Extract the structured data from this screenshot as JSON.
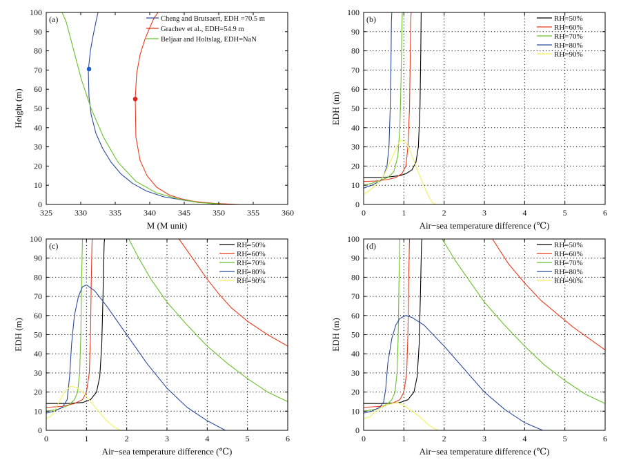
{
  "colors": {
    "black": "#000000",
    "red": "#e8391b",
    "green": "#6abf2a",
    "blue": "#2b4a9b",
    "yellow": "#f5f05a",
    "dot_blue": "#1f5fc9",
    "dot_red": "#e3231b"
  },
  "chart_data": [
    {
      "type": "line",
      "panel_label": "(a)",
      "xlabel": "M (M unit)",
      "ylabel": "Height (m)",
      "xlim": [
        325,
        360
      ],
      "ylim": [
        0,
        100
      ],
      "xticks": [
        325,
        330,
        335,
        340,
        345,
        350,
        355,
        360
      ],
      "yticks": [
        0,
        10,
        20,
        30,
        40,
        50,
        60,
        70,
        80,
        90,
        100
      ],
      "grid": false,
      "legend_position": "top-right",
      "series": [
        {
          "name": "Cheng and Brutsaert, EDH =70.5 m",
          "color": "blue",
          "x": [
            350.0,
            345.3,
            342.0,
            339.5,
            337.5,
            335.8,
            334.4,
            333.2,
            332.2,
            331.5,
            331.2,
            331.1,
            331.4,
            331.8,
            332.2,
            332.5
          ],
          "y": [
            0,
            2,
            4,
            7,
            11,
            16,
            22,
            29,
            37,
            47,
            56,
            70,
            80,
            88,
            95,
            100
          ]
        },
        {
          "name": "Grachev et al., EDH=54.9 m",
          "color": "red",
          "x": [
            353.0,
            349.5,
            346.5,
            344.5,
            342.8,
            341.0,
            339.6,
            338.6,
            338.0,
            337.9,
            338.1,
            338.6,
            339.3,
            340.0,
            340.6,
            341.2
          ],
          "y": [
            0,
            0.5,
            1.5,
            3,
            5,
            9,
            15,
            23,
            35,
            55,
            68,
            78,
            86,
            92,
            97,
            100
          ]
        },
        {
          "name": "Beljaar and Holtslag, EDH=NaN",
          "color": "green",
          "x": [
            351.0,
            347.0,
            344.0,
            341.0,
            338.0,
            335.4,
            333.3,
            331.5,
            330.1,
            329.0,
            327.9,
            327.3
          ],
          "y": [
            0,
            1,
            3,
            6,
            12,
            22,
            35,
            50,
            65,
            80,
            95,
            100
          ]
        }
      ],
      "points": [
        {
          "x": 331.2,
          "y": 70.5,
          "color": "dot_blue"
        },
        {
          "x": 337.9,
          "y": 54.9,
          "color": "dot_red"
        }
      ]
    },
    {
      "type": "line",
      "panel_label": "(b)",
      "xlabel": "Air−sea temperature difference (℃)",
      "ylabel": "EDH (m)",
      "xlim": [
        0,
        6
      ],
      "ylim": [
        0,
        100
      ],
      "xticks": [
        0,
        1,
        2,
        3,
        4,
        5,
        6
      ],
      "yticks": [
        0,
        10,
        20,
        30,
        40,
        50,
        60,
        70,
        80,
        90,
        100
      ],
      "grid": true,
      "legend_position": "top-right",
      "series": [
        {
          "name": "RH=50%",
          "color": "black",
          "x": [
            0,
            0.3,
            0.6,
            0.9,
            1.05,
            1.2,
            1.3,
            1.36,
            1.4,
            1.42,
            1.43,
            1.44,
            6
          ],
          "y": [
            14,
            14,
            14.3,
            15,
            16,
            18,
            22,
            30,
            50,
            80,
            100,
            100,
            100
          ]
        },
        {
          "name": "RH=60%",
          "color": "red",
          "x": [
            0,
            0.3,
            0.6,
            0.8,
            0.95,
            1.05,
            1.1,
            1.14,
            1.16,
            1.17,
            1.18,
            6
          ],
          "y": [
            12,
            12.2,
            13,
            14,
            16,
            20,
            30,
            50,
            80,
            95,
            100,
            100
          ]
        },
        {
          "name": "RH=70%",
          "color": "green",
          "x": [
            0,
            0.2,
            0.4,
            0.6,
            0.75,
            0.85,
            0.9,
            0.93,
            0.95,
            0.96,
            6
          ],
          "y": [
            10,
            11,
            12.5,
            14,
            17,
            25,
            40,
            65,
            90,
            100,
            100
          ]
        },
        {
          "name": "RH=80%",
          "color": "blue",
          "x": [
            0,
            0.2,
            0.4,
            0.5,
            0.58,
            0.63,
            0.66,
            0.68,
            0.69,
            0.7
          ],
          "y": [
            8.5,
            10,
            12,
            15,
            20,
            30,
            50,
            75,
            95,
            100
          ]
        },
        {
          "name": "RH=90%",
          "color": "yellow",
          "x": [
            0,
            0.1,
            0.3,
            0.5,
            0.7,
            0.85,
            0.9,
            0.95,
            1.05,
            1.15,
            1.3,
            1.45,
            1.6,
            1.7,
            1.8,
            6
          ],
          "y": [
            5.5,
            6.5,
            10,
            15,
            24,
            31,
            33,
            33.5,
            32,
            28,
            20,
            12,
            5,
            1,
            0,
            0
          ]
        }
      ]
    },
    {
      "type": "line",
      "panel_label": "(c)",
      "xlabel": "Air−sea temperature difference (℃)",
      "ylabel": "EDH (m)",
      "xlim": [
        0,
        6
      ],
      "ylim": [
        0,
        100
      ],
      "xticks": [
        0,
        1,
        2,
        3,
        4,
        5,
        6
      ],
      "yticks": [
        0,
        10,
        20,
        30,
        40,
        50,
        60,
        70,
        80,
        90,
        100
      ],
      "grid": true,
      "legend_position": "top-right",
      "series": [
        {
          "name": "RH=50%",
          "color": "black",
          "x": [
            0,
            0.5,
            0.9,
            1.1,
            1.25,
            1.33,
            1.38,
            1.41,
            1.43,
            1.44,
            1.45
          ],
          "y": [
            14,
            14,
            14.5,
            16,
            20,
            28,
            45,
            70,
            90,
            98,
            100
          ]
        },
        {
          "name": "RH=60%",
          "color": "red",
          "x": [
            0,
            0.4,
            0.7,
            0.9,
            1.0,
            1.07,
            1.1,
            1.12,
            1.14,
            3.3,
            3.7,
            4.0,
            4.3,
            4.6,
            5.0,
            5.5,
            6.0
          ],
          "y": [
            12,
            12.5,
            14,
            16,
            20,
            30,
            50,
            80,
            100,
            100,
            88,
            79,
            71,
            64,
            57,
            50,
            44
          ]
        },
        {
          "name": "RH=70%",
          "color": "green",
          "x": [
            0,
            0.3,
            0.55,
            0.7,
            0.78,
            0.83,
            0.86,
            0.88,
            0.9,
            2.05,
            2.3,
            2.6,
            3.0,
            3.5,
            4.0,
            4.5,
            5.0,
            5.5,
            6.0
          ],
          "y": [
            10,
            11,
            13,
            16,
            20,
            30,
            50,
            80,
            100,
            100,
            90,
            79,
            67,
            55,
            44,
            35,
            27,
            20,
            15
          ]
        },
        {
          "name": "RH=80%",
          "color": "blue",
          "x": [
            0,
            0.2,
            0.4,
            0.52,
            0.58,
            0.63,
            0.7,
            0.8,
            0.9,
            1.0,
            1.2,
            1.5,
            2.0,
            2.5,
            3.0,
            3.5,
            4.0,
            4.45
          ],
          "y": [
            9,
            10,
            12,
            16,
            28,
            45,
            60,
            70,
            75,
            76,
            73,
            65,
            50,
            35,
            22,
            12,
            5,
            0
          ]
        },
        {
          "name": "RH=90%",
          "color": "yellow",
          "x": [
            0,
            0.15,
            0.3,
            0.45,
            0.6,
            0.75,
            0.9,
            1.1,
            1.3,
            1.5,
            1.7,
            1.85,
            6
          ],
          "y": [
            6,
            8,
            14,
            20,
            23,
            22.5,
            20,
            15,
            10,
            5,
            1.5,
            0,
            0
          ]
        }
      ]
    },
    {
      "type": "line",
      "panel_label": "(d)",
      "xlabel": "Air−sea temperature difference (℃)",
      "ylabel": "EDH (m)",
      "xlim": [
        0,
        6
      ],
      "ylim": [
        0,
        100
      ],
      "xticks": [
        0,
        1,
        2,
        3,
        4,
        5,
        6
      ],
      "yticks": [
        0,
        10,
        20,
        30,
        40,
        50,
        60,
        70,
        80,
        90,
        100
      ],
      "grid": true,
      "legend_position": "top-right",
      "series": [
        {
          "name": "RH=50%",
          "color": "black",
          "x": [
            0,
            0.5,
            0.9,
            1.1,
            1.25,
            1.33,
            1.38,
            1.41,
            1.43,
            1.44,
            1.45
          ],
          "y": [
            14,
            14,
            14.5,
            16,
            20,
            28,
            45,
            70,
            90,
            98,
            100
          ]
        },
        {
          "name": "RH=60%",
          "color": "red",
          "x": [
            0,
            0.4,
            0.7,
            0.9,
            1.0,
            1.07,
            1.1,
            1.12,
            1.14,
            3.2,
            3.6,
            4.0,
            4.4,
            4.8,
            5.2,
            5.6,
            6.0
          ],
          "y": [
            12,
            12.5,
            14,
            16,
            20,
            30,
            50,
            80,
            100,
            100,
            87,
            77,
            68,
            61,
            54,
            48,
            42
          ]
        },
        {
          "name": "RH=70%",
          "color": "green",
          "x": [
            0,
            0.3,
            0.55,
            0.7,
            0.78,
            0.83,
            0.86,
            0.88,
            0.9,
            1.95,
            2.3,
            2.6,
            3.0,
            3.5,
            4.0,
            4.5,
            5.0,
            5.5,
            6.0
          ],
          "y": [
            10,
            11,
            13,
            16,
            20,
            30,
            50,
            80,
            100,
            100,
            88,
            79,
            67,
            55,
            44,
            34,
            26,
            19,
            14
          ]
        },
        {
          "name": "RH=80%",
          "color": "blue",
          "x": [
            0,
            0.2,
            0.4,
            0.5,
            0.55,
            0.6,
            0.7,
            0.8,
            0.9,
            1.05,
            1.2,
            1.5,
            2.0,
            2.5,
            3.0,
            3.5,
            4.0,
            4.45
          ],
          "y": [
            9,
            10,
            12,
            15,
            22,
            35,
            48,
            55,
            58.5,
            60,
            59,
            55,
            44,
            32,
            20,
            11,
            4,
            0
          ]
        },
        {
          "name": "RH=90%",
          "color": "yellow",
          "x": [
            0,
            0.15,
            0.3,
            0.5,
            0.7,
            0.85,
            1.0,
            1.2,
            1.4,
            1.6,
            1.75,
            1.85,
            6
          ],
          "y": [
            6,
            7,
            10,
            13,
            14,
            14.5,
            13,
            10,
            7,
            3,
            1,
            0,
            0
          ]
        }
      ]
    }
  ]
}
